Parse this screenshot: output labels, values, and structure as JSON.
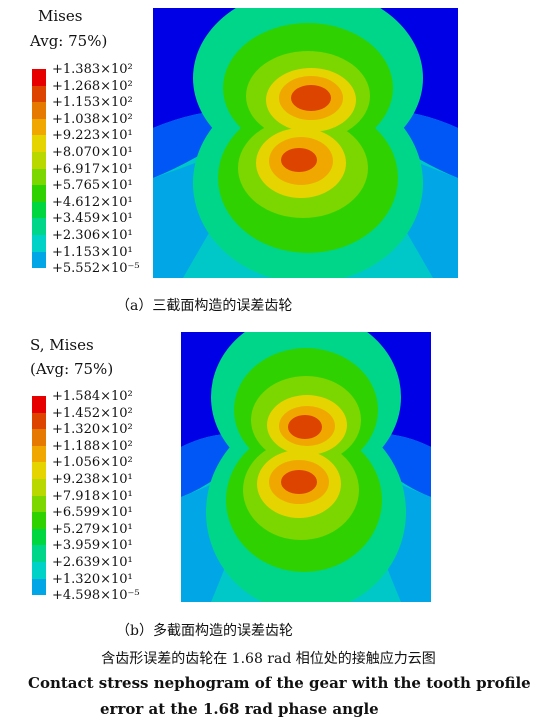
{
  "panel_a": {
    "legend_title_line1": "Mises",
    "legend_title_line2": "Avg: 75%)",
    "legend_values": [
      "+1.383×10²",
      "+1.268×10²",
      "+1.153×10²",
      "+1.038×10²",
      "+9.223×10¹",
      "+8.070×10¹",
      "+6.917×10¹",
      "+5.765×10¹",
      "+4.612×10¹",
      "+3.459×10¹",
      "+2.306×10¹",
      "+1.153×10¹",
      "+5.552×10⁻⁵"
    ],
    "caption": "（a）三截面构造的误差齿轮"
  },
  "panel_b": {
    "legend_title_line1": "S, Mises",
    "legend_title_line2": "(Avg: 75%)",
    "legend_values": [
      "+1.584×10²",
      "+1.452×10²",
      "+1.320×10²",
      "+1.188×10²",
      "+1.056×10²",
      "+9.238×10¹",
      "+7.918×10¹",
      "+6.599×10¹",
      "+5.279×10¹",
      "+3.959×10¹",
      "+2.639×10¹",
      "+1.320×10¹",
      "+4.598×10⁻⁵"
    ],
    "caption": "（b）多截面构造的误差齿轮"
  },
  "figure_caption_cn": "含齿形误差的齿轮在 1.68 rad 相位处的接触应力云图",
  "figure_caption_en_line1": "Contact stress nephogram of the gear with the tooth profile",
  "figure_caption_en_line2": "error at the 1.68 rad phase angle",
  "colors": {
    "scale": [
      "#0000e6",
      "#0057f5",
      "#00a6e6",
      "#00d2c8",
      "#00d68a",
      "#00d640",
      "#2fd200",
      "#7cd600",
      "#b8d800",
      "#e6d400",
      "#f0a800",
      "#e67a00",
      "#dd4400",
      "#e60000"
    ]
  }
}
